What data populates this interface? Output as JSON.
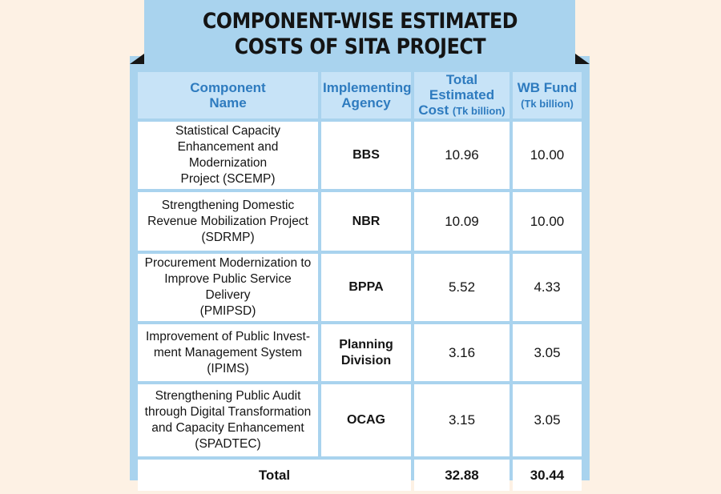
{
  "title": {
    "line1": "COMPONENT-WISE ESTIMATED",
    "line2": "COSTS OF SITA PROJECT"
  },
  "colors": {
    "background": "#fdf1e4",
    "panel": "#a9d3ee",
    "header_cell": "#c7e3f7",
    "header_text": "#2e7bbf",
    "body_cell": "#ffffff"
  },
  "chart_data": {
    "type": "table",
    "columns": [
      {
        "label_line1": "Component",
        "label_line2": "Name",
        "unit": ""
      },
      {
        "label_line1": "Implementing",
        "label_line2": "Agency",
        "unit": ""
      },
      {
        "label_line1": "Total Estimated",
        "label_line2": "Cost",
        "unit": "(Tk billion)"
      },
      {
        "label_line1": "WB Fund",
        "label_line2": "",
        "unit": "(Tk billion)"
      }
    ],
    "rows": [
      {
        "name_lines": [
          "Statistical Capacity",
          "Enhancement and Modernization",
          "Project (SCEMP)"
        ],
        "agency": "BBS",
        "total_cost": "10.96",
        "wb_fund": "10.00"
      },
      {
        "name_lines": [
          "Strengthening Domestic",
          "Revenue Mobilization Project",
          "(SDRMP)"
        ],
        "agency": "NBR",
        "total_cost": "10.09",
        "wb_fund": "10.00"
      },
      {
        "name_lines": [
          "Procurement Modernization to",
          "Improve Public Service Delivery",
          "(PMIPSD)"
        ],
        "agency": "BPPA",
        "total_cost": "5.52",
        "wb_fund": "4.33"
      },
      {
        "name_lines": [
          "Improvement of Public Invest-",
          "ment Management System",
          "(IPIMS)"
        ],
        "agency": "Planning Division",
        "total_cost": "3.16",
        "wb_fund": "3.05"
      },
      {
        "name_lines": [
          "Strengthening Public Audit",
          "through Digital Transformation",
          "and Capacity Enhancement",
          "(SPADTEC)"
        ],
        "agency": "OCAG",
        "total_cost": "3.15",
        "wb_fund": "3.05"
      }
    ],
    "total": {
      "label": "Total",
      "total_cost": "32.88",
      "wb_fund": "30.44"
    }
  }
}
